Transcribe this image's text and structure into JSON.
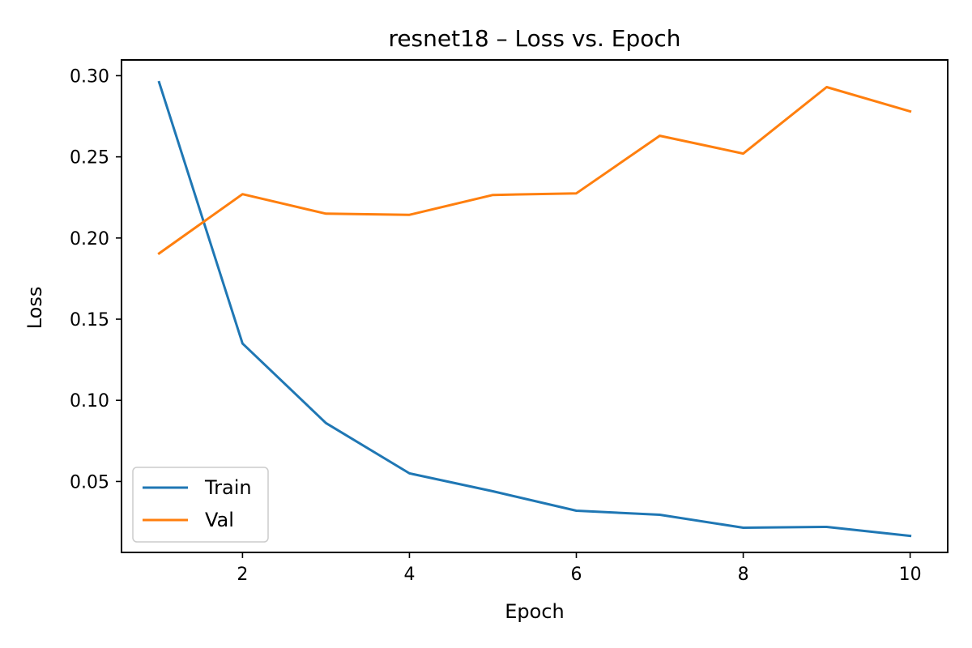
{
  "chart_data": {
    "type": "line",
    "title": "resnet18 – Loss vs. Epoch",
    "xlabel": "Epoch",
    "ylabel": "Loss",
    "x": [
      1,
      2,
      3,
      4,
      5,
      6,
      7,
      8,
      9,
      10
    ],
    "xlim": [
      0.55,
      10.45
    ],
    "ylim": [
      0.0063,
      0.3097
    ],
    "xticks": [
      2,
      4,
      6,
      8,
      10
    ],
    "yticks": [
      0.05,
      0.1,
      0.15,
      0.2,
      0.25,
      0.3
    ],
    "xtick_labels": [
      "2",
      "4",
      "6",
      "8",
      "10"
    ],
    "ytick_labels": [
      "0.05",
      "0.10",
      "0.15",
      "0.20",
      "0.25",
      "0.30"
    ],
    "grid": false,
    "legend_position": "lower-left",
    "series": [
      {
        "name": "Train",
        "color": "#1f77b4",
        "values": [
          0.296,
          0.135,
          0.086,
          0.055,
          0.044,
          0.032,
          0.0295,
          0.0215,
          0.022,
          0.0165
        ]
      },
      {
        "name": "Val",
        "color": "#ff7f0e",
        "values": [
          0.1905,
          0.227,
          0.215,
          0.2143,
          0.2265,
          0.2275,
          0.263,
          0.252,
          0.293,
          0.278
        ]
      }
    ]
  }
}
